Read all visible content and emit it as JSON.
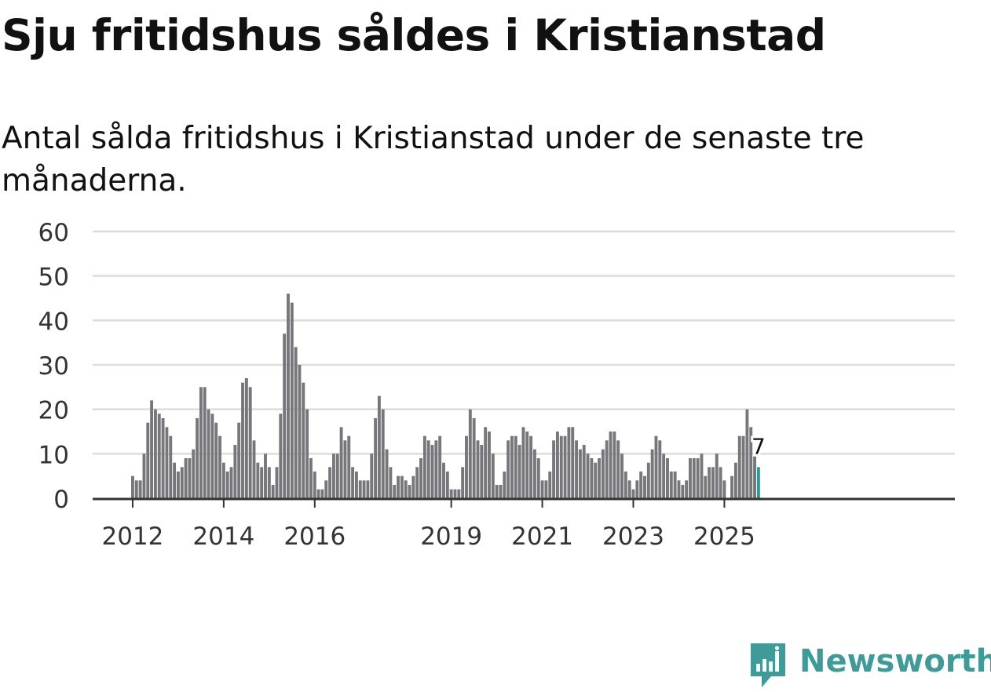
{
  "chart_data": {
    "type": "bar",
    "title": "Sju fritidshus såldes i Kristianstad",
    "subtitle": "Antal sålda fritidshus i Kristianstad under de senaste tre månaderna.",
    "xlabel": "",
    "ylabel": "",
    "ylim": [
      0,
      60
    ],
    "yticks": [
      0,
      10,
      20,
      30,
      40,
      50,
      60
    ],
    "grid": true,
    "start_month": "2012-01",
    "xtick_labels": [
      {
        "label": "2012",
        "month": "2012-01"
      },
      {
        "label": "2014",
        "month": "2014-01"
      },
      {
        "label": "2016",
        "month": "2016-01"
      },
      {
        "label": "2019",
        "month": "2019-01"
      },
      {
        "label": "2021",
        "month": "2021-01"
      },
      {
        "label": "2023",
        "month": "2023-01"
      },
      {
        "label": "2025",
        "month": "2025-01"
      }
    ],
    "values": [
      5,
      4,
      4,
      10,
      17,
      22,
      20,
      19,
      18,
      16,
      14,
      8,
      6,
      7,
      9,
      9,
      11,
      18,
      25,
      25,
      20,
      19,
      17,
      14,
      8,
      6,
      7,
      12,
      17,
      26,
      27,
      25,
      13,
      8,
      7,
      10,
      7,
      3,
      7,
      19,
      37,
      46,
      44,
      34,
      30,
      26,
      20,
      9,
      6,
      2,
      2,
      4,
      7,
      10,
      10,
      16,
      13,
      14,
      7,
      6,
      4,
      4,
      4,
      10,
      18,
      23,
      20,
      11,
      7,
      3,
      5,
      5,
      4,
      3,
      5,
      7,
      9,
      14,
      13,
      12,
      13,
      14,
      8,
      6,
      2,
      2,
      2,
      7,
      14,
      20,
      18,
      13,
      12,
      16,
      15,
      10,
      3,
      3,
      6,
      13,
      14,
      14,
      12,
      16,
      15,
      14,
      11,
      9,
      4,
      4,
      6,
      13,
      15,
      14,
      14,
      16,
      16,
      13,
      11,
      12,
      10,
      9,
      8,
      9,
      11,
      13,
      15,
      15,
      13,
      10,
      6,
      4,
      2,
      4,
      6,
      5,
      8,
      11,
      14,
      13,
      10,
      9,
      6,
      6,
      4,
      3,
      4,
      9,
      9,
      9,
      10,
      5,
      7,
      7,
      10,
      7,
      4,
      0,
      5,
      8,
      14,
      14,
      20,
      16,
      10,
      7
    ],
    "highlight_index": 165,
    "highlight_label": "7",
    "colors": {
      "bar": "#77767b",
      "highlight": "#2a9d96",
      "grid": "#dddddd",
      "axis": "#333333"
    }
  },
  "brand": {
    "name": "Newsworthy",
    "color": "#3e9b97",
    "icon": "newsworthy-logo-icon"
  }
}
